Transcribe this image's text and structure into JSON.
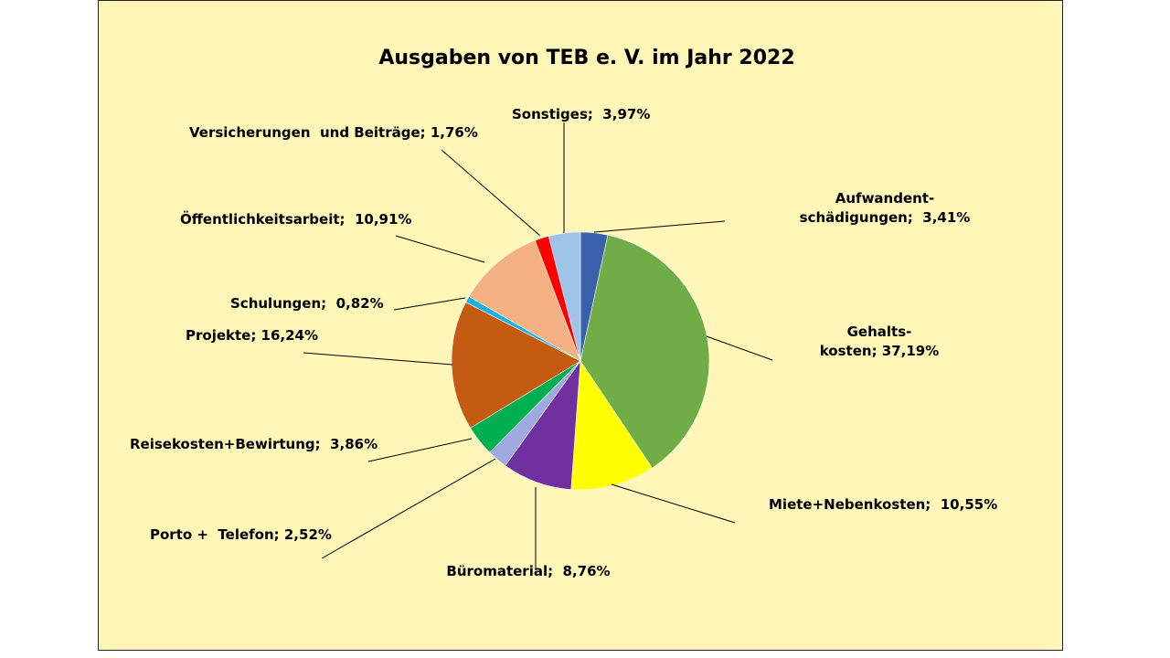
{
  "chart_data": {
    "type": "pie",
    "title": "Ausgaben von TEB e. V. im Jahr 2022",
    "background": "#fff6b8",
    "series": [
      {
        "labels": [
          "Aufwandent-\nschädigungen",
          "Gehalts-\nkosten",
          "Miete+Nebenkosten",
          "Büromaterial",
          "Porto + Telefon",
          "Reisekosten+Bewirtung",
          "Projekte",
          "Schulungen",
          "Öffentlichkeitsarbeit",
          "Versicherungen und Beiträge",
          "Sonstiges"
        ],
        "values": [
          3.41,
          37.19,
          10.55,
          8.76,
          2.52,
          3.86,
          16.24,
          0.82,
          10.91,
          1.76,
          3.97
        ],
        "value_labels": [
          "3,41%",
          "37,19%",
          "10,55%",
          "8,76%",
          "2,52%",
          "3,86%",
          "16,24%",
          "0,82%",
          "10,91%",
          "1,76%",
          "3,97%"
        ],
        "colors": [
          "#3a60aa",
          "#70ad47",
          "#ffff00",
          "#7030a0",
          "#9dabe0",
          "#00b050",
          "#c55a11",
          "#1ab2e6",
          "#f4b183",
          "#ff0000",
          "#9dc3e6"
        ],
        "data_labels": [
          [
            "Aufwandent-",
            "schädigungen;  3,41%"
          ],
          [
            "Gehalts-",
            "kosten; 37,19%"
          ],
          [
            "Miete+Nebenkosten;  10,55%"
          ],
          [
            "Büromaterial;  8,76%"
          ],
          [
            "Porto +  Telefon; 2,52%"
          ],
          [
            "Reisekosten+Bewirtung;  3,86%"
          ],
          [
            "Projekte; 16,24%"
          ],
          [
            "Schulungen;  0,82%"
          ],
          [
            "Öffentlichkeitsarbeit;  10,91%"
          ],
          [
            "Versicherungen  und Beiträge; 1,76%"
          ],
          [
            "Sonstiges;  3,97%"
          ]
        ]
      }
    ],
    "start_angle": "12 o'clock",
    "direction": "clockwise",
    "legend": "none"
  }
}
